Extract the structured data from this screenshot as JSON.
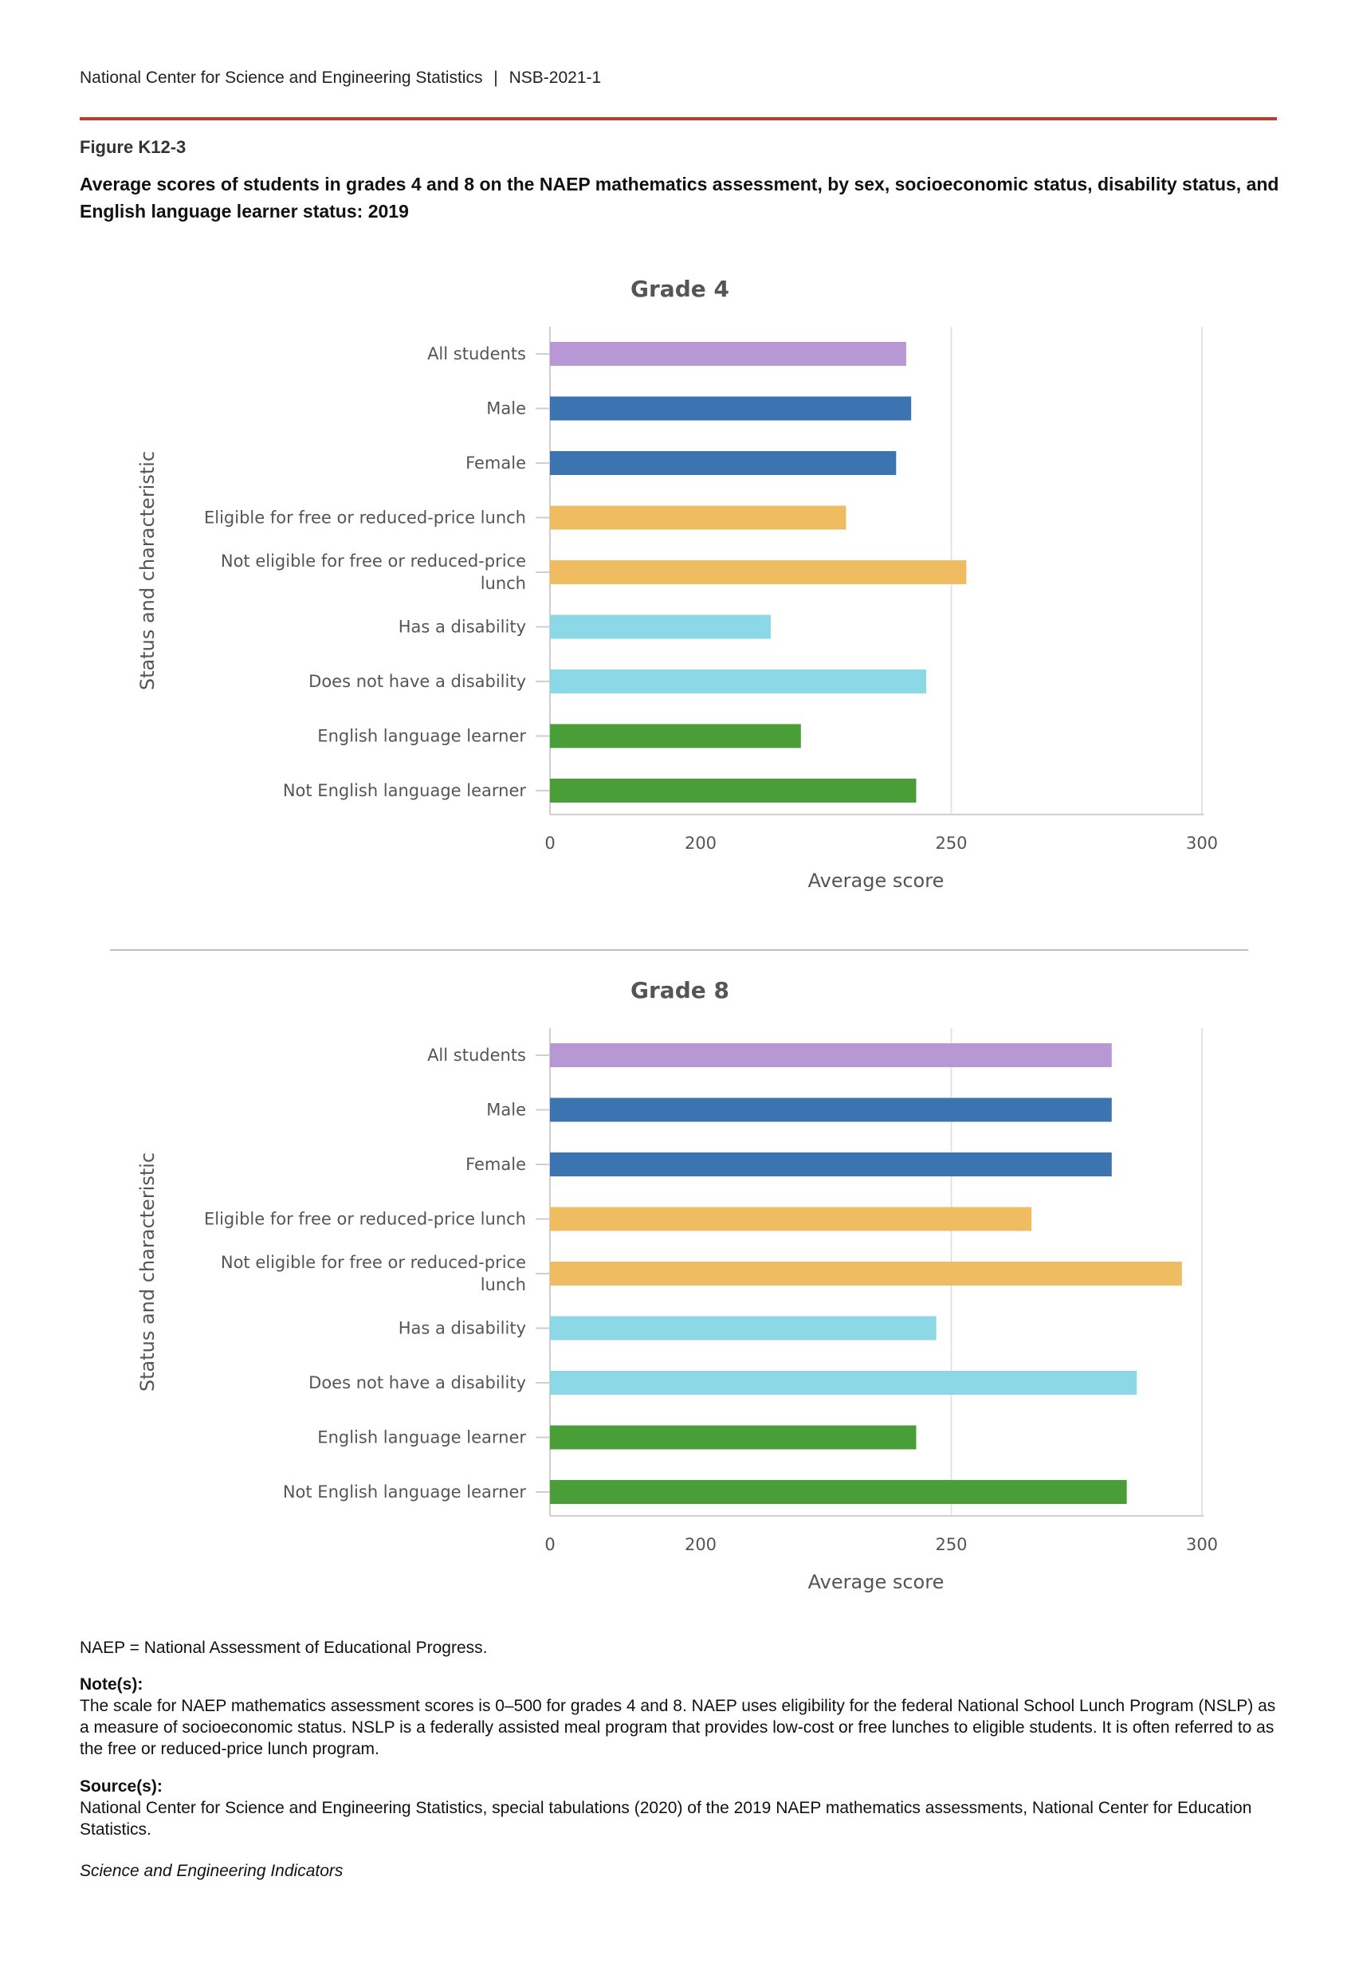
{
  "header": {
    "org": "National Center for Science and Engineering Statistics",
    "separator": "|",
    "report": "NSB-2021-1"
  },
  "figure": {
    "label": "Figure K12-3",
    "title": "Average scores of students in grades 4 and 8 on the NAEP mathematics assessment, by sex, socioeconomic status, disability status, and English language learner status: 2019"
  },
  "colors": {
    "all": "#b797d4",
    "sex": "#3b74b0",
    "lunch": "#f0bc62",
    "disability": "#8dd8e6",
    "ell": "#4a9e38"
  },
  "chart_data": [
    {
      "type": "bar",
      "orientation": "horizontal",
      "title": "Grade 4",
      "xlabel": "Average score",
      "ylabel": "Status and characteristic",
      "xticks": [
        "0",
        "200",
        "250",
        "300"
      ],
      "xlim_note": "axis break between 0 and 200",
      "categories": [
        [
          "All students"
        ],
        [
          "Male"
        ],
        [
          "Female"
        ],
        [
          "Eligible for free or reduced-price lunch"
        ],
        [
          "Not eligible for free or reduced-price",
          "lunch"
        ],
        [
          "Has a disability"
        ],
        [
          "Does not have a disability"
        ],
        [
          "English language learner"
        ],
        [
          "Not English language learner"
        ]
      ],
      "groups": [
        "all",
        "sex",
        "sex",
        "lunch",
        "lunch",
        "disability",
        "disability",
        "ell",
        "ell"
      ],
      "values": [
        241,
        242,
        239,
        229,
        253,
        214,
        245,
        220,
        243
      ]
    },
    {
      "type": "bar",
      "orientation": "horizontal",
      "title": "Grade 8",
      "xlabel": "Average score",
      "ylabel": "Status and characteristic",
      "xticks": [
        "0",
        "200",
        "250",
        "300"
      ],
      "xlim_note": "axis break between 0 and 200",
      "categories": [
        [
          "All students"
        ],
        [
          "Male"
        ],
        [
          "Female"
        ],
        [
          "Eligible for free or reduced-price lunch"
        ],
        [
          "Not eligible for free or reduced-price",
          "lunch"
        ],
        [
          "Has a disability"
        ],
        [
          "Does not have a disability"
        ],
        [
          "English language learner"
        ],
        [
          "Not English language learner"
        ]
      ],
      "groups": [
        "all",
        "sex",
        "sex",
        "lunch",
        "lunch",
        "disability",
        "disability",
        "ell",
        "ell"
      ],
      "values": [
        282,
        282,
        282,
        266,
        296,
        247,
        287,
        243,
        285
      ]
    }
  ],
  "footer": {
    "abbrev": "NAEP = National Assessment of Educational Progress.",
    "note_heading": "Note(s):",
    "note_text": "The scale for NAEP mathematics assessment scores is 0–500 for grades 4 and 8. NAEP uses eligibility for the federal National School Lunch Program (NSLP) as a measure of socioeconomic status. NSLP is a federally assisted meal program that provides low-cost or free lunches to eligible students. It is often referred to as the free or reduced-price lunch program.",
    "source_heading": "Source(s):",
    "source_text": "National Center for Science and Engineering Statistics, special tabulations (2020) of the 2019 NAEP mathematics assessments, National Center for Education Statistics.",
    "publication": "Science and Engineering Indicators"
  }
}
